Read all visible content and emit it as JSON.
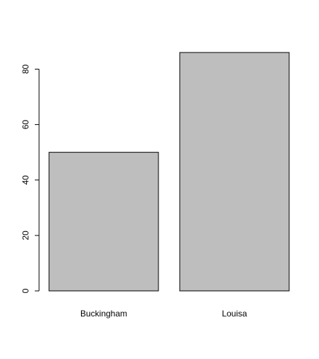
{
  "chart_data": {
    "type": "bar",
    "categories": [
      "Buckingham",
      "Louisa"
    ],
    "values": [
      50,
      86
    ],
    "title": "",
    "xlabel": "",
    "ylabel": "",
    "ylim": [
      0,
      86
    ],
    "yticks": [
      0,
      20,
      40,
      60,
      80
    ],
    "grid": false,
    "colors": {
      "bar_fill": "#bebebe",
      "bar_stroke": "#000000",
      "axis": "#000000"
    }
  }
}
